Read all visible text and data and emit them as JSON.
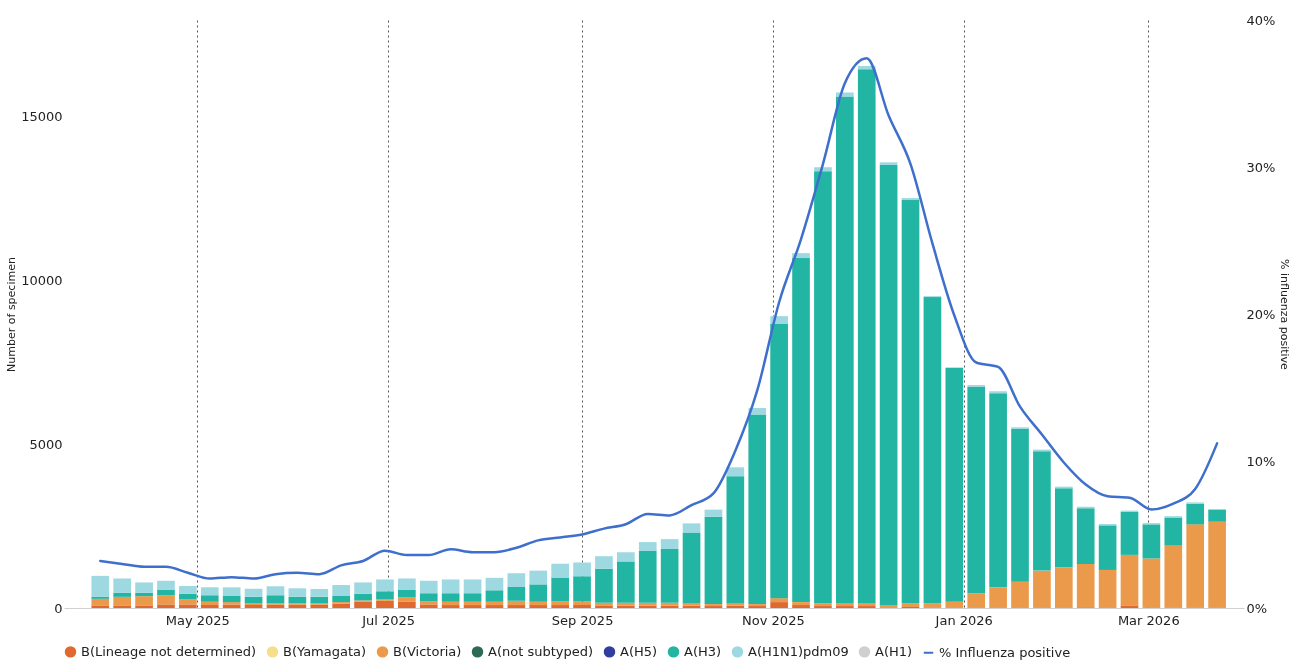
{
  "chart_data": {
    "type": "bar",
    "stacked": true,
    "ylabel": "Number of specimen",
    "y2label": "% influenza positive",
    "legend": "bottom",
    "grid": "x",
    "x": [
      "2025-03-31",
      "2025-04-07",
      "2025-04-14",
      "2025-04-21",
      "2025-04-28",
      "2025-05-05",
      "2025-05-12",
      "2025-05-19",
      "2025-05-26",
      "2025-06-02",
      "2025-06-09",
      "2025-06-16",
      "2025-06-23",
      "2025-06-30",
      "2025-07-07",
      "2025-07-14",
      "2025-07-21",
      "2025-07-28",
      "2025-08-04",
      "2025-08-11",
      "2025-08-18",
      "2025-08-25",
      "2025-09-01",
      "2025-09-08",
      "2025-09-15",
      "2025-09-22",
      "2025-09-29",
      "2025-10-06",
      "2025-10-13",
      "2025-10-20",
      "2025-10-27",
      "2025-11-03",
      "2025-11-10",
      "2025-11-17",
      "2025-11-24",
      "2025-12-01",
      "2025-12-08",
      "2025-12-15",
      "2025-12-22",
      "2025-12-29",
      "2026-01-05",
      "2026-01-12",
      "2026-01-19",
      "2026-01-26",
      "2026-02-02",
      "2026-02-09",
      "2026-02-16",
      "2026-02-23",
      "2026-03-02",
      "2026-03-09",
      "2026-03-16",
      "2026-03-23"
    ],
    "xticks": [
      {
        "value": "2025-05-01",
        "label": "May 2025"
      },
      {
        "value": "2025-07-01",
        "label": "Jul 2025"
      },
      {
        "value": "2025-09-01",
        "label": "Sep 2025"
      },
      {
        "value": "2025-11-01",
        "label": "Nov 2025"
      },
      {
        "value": "2026-01-01",
        "label": "Jan 2026"
      },
      {
        "value": "2026-03-01",
        "label": "Mar 2026"
      }
    ],
    "xlim": [
      "2025-03-21",
      "2026-03-30"
    ],
    "ylim": [
      0,
      17930
    ],
    "yticks": [
      0,
      5000,
      10000,
      15000
    ],
    "y2lim": [
      0,
      40
    ],
    "y2ticks": [
      {
        "value": 0,
        "label": "0%"
      },
      {
        "value": 10,
        "label": "10%"
      },
      {
        "value": 20,
        "label": "20%"
      },
      {
        "value": 30,
        "label": "30%"
      },
      {
        "value": 40,
        "label": "40%"
      }
    ],
    "series": [
      {
        "name": "B(Lineage not determined)",
        "color": "#e0692f",
        "values": [
          80,
          80,
          80,
          110,
          110,
          90,
          100,
          90,
          100,
          100,
          100,
          130,
          190,
          220,
          200,
          110,
          90,
          90,
          90,
          90,
          90,
          90,
          90,
          80,
          70,
          70,
          70,
          70,
          60,
          70,
          60,
          180,
          90,
          60,
          60,
          60,
          0,
          30,
          20,
          20,
          20,
          20,
          20,
          20,
          20,
          20,
          20,
          80,
          20,
          20,
          20,
          20
        ]
      },
      {
        "name": "B(Yamagata)",
        "color": "#f6df8c",
        "values": [
          0,
          0,
          0,
          0,
          0,
          0,
          0,
          0,
          0,
          0,
          0,
          0,
          0,
          0,
          0,
          0,
          0,
          0,
          0,
          0,
          0,
          0,
          0,
          0,
          0,
          0,
          0,
          0,
          0,
          0,
          0,
          0,
          0,
          0,
          0,
          0,
          0,
          0,
          0,
          0,
          0,
          0,
          0,
          0,
          0,
          0,
          0,
          0,
          0,
          0,
          0,
          0
        ]
      },
      {
        "name": "B(Victoria)",
        "color": "#eb9a4b",
        "values": [
          200,
          260,
          280,
          280,
          150,
          100,
          80,
          50,
          40,
          40,
          40,
          50,
          40,
          50,
          120,
          100,
          100,
          100,
          100,
          130,
          100,
          110,
          110,
          80,
          90,
          90,
          90,
          70,
          60,
          70,
          60,
          120,
          90,
          90,
          80,
          80,
          90,
          120,
          130,
          170,
          420,
          610,
          780,
          1120,
          1220,
          1320,
          1140,
          1540,
          1490,
          1880,
          2530,
          2610
        ]
      },
      {
        "name": "A(not subtyped)",
        "color": "#2e6b55",
        "values": [
          0,
          0,
          0,
          0,
          0,
          0,
          0,
          0,
          0,
          0,
          0,
          0,
          0,
          0,
          0,
          0,
          0,
          0,
          0,
          0,
          0,
          0,
          0,
          0,
          0,
          0,
          0,
          0,
          0,
          0,
          0,
          0,
          0,
          0,
          0,
          0,
          0,
          0,
          0,
          0,
          0,
          0,
          0,
          0,
          0,
          0,
          0,
          0,
          0,
          0,
          0,
          0
        ]
      },
      {
        "name": "A(H5)",
        "color": "#2f3ea0",
        "values": [
          0,
          0,
          0,
          0,
          0,
          0,
          0,
          0,
          0,
          0,
          0,
          0,
          0,
          0,
          0,
          0,
          0,
          0,
          0,
          0,
          0,
          0,
          0,
          0,
          0,
          0,
          0,
          0,
          0,
          0,
          0,
          0,
          0,
          0,
          0,
          0,
          0,
          0,
          0,
          0,
          0,
          0,
          0,
          0,
          0,
          0,
          0,
          0,
          0,
          0,
          0,
          0
        ]
      },
      {
        "name": "A(H3)",
        "color": "#22b5a3",
        "values": [
          60,
          120,
          100,
          160,
          170,
          200,
          200,
          200,
          250,
          200,
          200,
          200,
          200,
          240,
          230,
          240,
          260,
          260,
          350,
          420,
          530,
          730,
          770,
          1040,
          1260,
          1580,
          1640,
          2160,
          2660,
          3880,
          5780,
          8360,
          10490,
          13170,
          15460,
          16290,
          13420,
          12290,
          9330,
          7130,
          6300,
          5920,
          4660,
          3640,
          2410,
          1700,
          1360,
          1310,
          1040,
          860,
          630,
          360
        ]
      },
      {
        "name": "A(H1N1)pdm09",
        "color": "#9ed8e0",
        "values": [
          640,
          440,
          320,
          280,
          240,
          240,
          250,
          250,
          270,
          260,
          240,
          320,
          350,
          360,
          350,
          380,
          420,
          420,
          380,
          420,
          420,
          420,
          420,
          380,
          280,
          270,
          300,
          280,
          220,
          270,
          200,
          240,
          150,
          120,
          120,
          100,
          80,
          60,
          30,
          20,
          60,
          60,
          50,
          50,
          50,
          50,
          40,
          40,
          40,
          40,
          40,
          30
        ]
      },
      {
        "name": "A(H1)",
        "color": "#cfcfcf",
        "values": [
          0,
          0,
          0,
          0,
          0,
          0,
          0,
          0,
          0,
          0,
          0,
          0,
          0,
          0,
          0,
          0,
          0,
          0,
          0,
          0,
          0,
          0,
          0,
          0,
          0,
          0,
          0,
          0,
          0,
          0,
          0,
          0,
          0,
          0,
          0,
          0,
          0,
          0,
          0,
          0,
          0,
          0,
          0,
          0,
          0,
          0,
          0,
          0,
          0,
          0,
          0,
          0
        ]
      },
      {
        "name": "% Influenza positive",
        "type": "line",
        "axis": "y2",
        "color": "#3f6fcc",
        "values": [
          3.2,
          3.0,
          2.8,
          2.8,
          2.4,
          2.0,
          2.1,
          2.0,
          2.3,
          2.4,
          2.3,
          2.9,
          3.2,
          3.9,
          3.6,
          3.6,
          4.0,
          3.8,
          3.8,
          4.1,
          4.6,
          4.8,
          5.0,
          5.4,
          5.7,
          6.4,
          6.3,
          7.0,
          7.8,
          10.7,
          14.8,
          20.8,
          25.1,
          30.2,
          35.7,
          37.4,
          33.5,
          30.2,
          24.8,
          19.9,
          16.7,
          16.4,
          13.7,
          11.8,
          9.9,
          8.4,
          7.6,
          7.5,
          6.7,
          7.1,
          8.1,
          11.2
        ]
      }
    ]
  }
}
